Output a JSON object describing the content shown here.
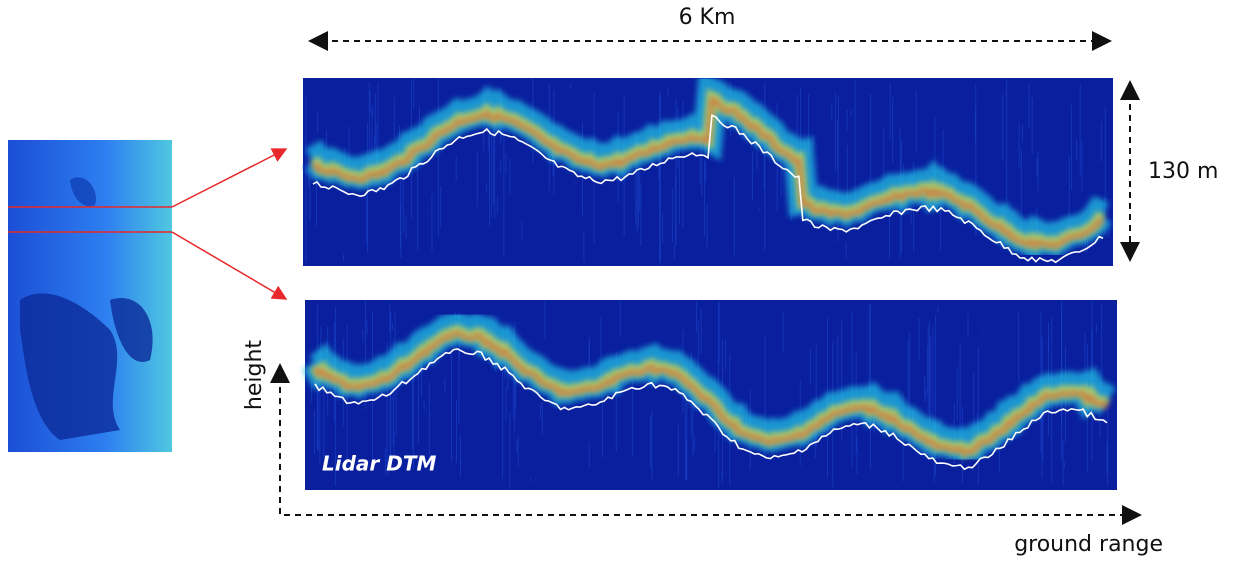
{
  "labels": {
    "width_span": "6 Km",
    "height_span": "130 m",
    "y_axis": "height",
    "x_axis": "ground range",
    "legend": "Lidar DTM"
  }
}
